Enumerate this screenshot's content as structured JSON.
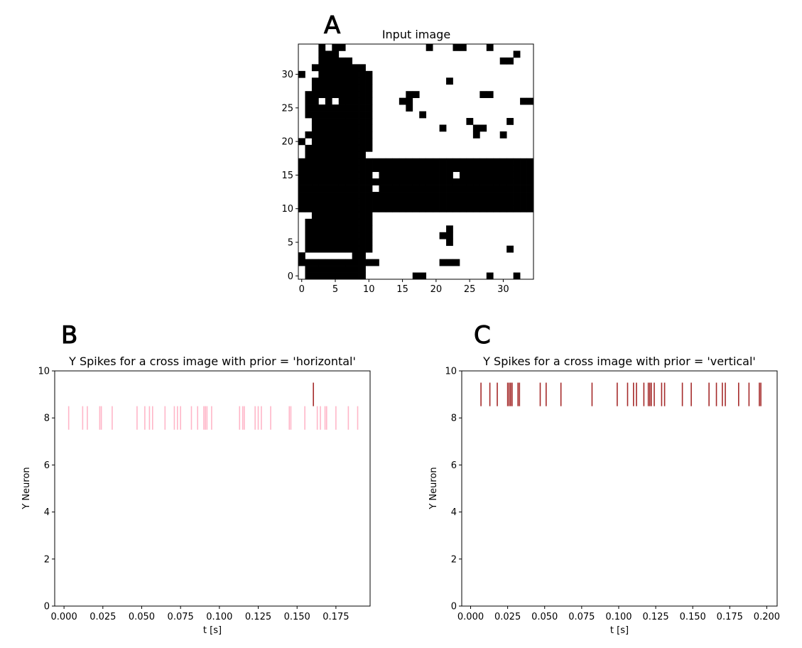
{
  "panels": {
    "A": "A",
    "B": "B",
    "C": "C"
  },
  "chart_data": [
    {
      "type": "heatmap",
      "title": "Input image",
      "xlabel": "",
      "ylabel": "",
      "xlim": [
        -0.5,
        34.5
      ],
      "ylim": [
        -0.5,
        34.5
      ],
      "xticks": [
        "0",
        "5",
        "10",
        "15",
        "20",
        "25",
        "30"
      ],
      "yticks": [
        "0",
        "5",
        "10",
        "15",
        "20",
        "25",
        "30"
      ],
      "colors": {
        "on": "#000000",
        "off": "#ffffff"
      },
      "size": [
        35,
        35
      ],
      "rows_top_to_bottom": [
        "00010110000000000001000110001000000",
        "00011100000000000000000000000000100",
        "00011111000000000000000000000011000",
        "00111111110000000000000000000000000",
        "10011111111000000000000000000000000",
        "00111111111000000000001000000000000",
        "00111111111000000000000000000000000",
        "01111111111000001100000000011000000",
        "01101011111000011000000000000000011",
        "01111111111000001000000000000000000",
        "01111111111000000010000000000000000",
        "00111111111000000000000001000001000",
        "00111111111000000000010000110000000",
        "01111111111000000000000000100010000",
        "10111111111000000000000000000000000",
        "01111111111000000000000000000000000",
        "01111111110000000000000000000000000",
        "11111111111111111111111111111111111",
        "11111111111111111111111111111111111",
        "11111111111011111111111011111111111",
        "11111111111111111111111111111111111",
        "11111111111011111111111111111111111",
        "11111111111111111111111111111111111",
        "11111111111111111111111111111111111",
        "11111111111111111111111111111111111",
        "00111111111000000000000000000000000",
        "01111111111000000000000000000000000",
        "01111111111000000000001000000000000",
        "01111111111000000000011000000000000",
        "01111111111000000000001000000000000",
        "01111111111000000000000000000001000",
        "10000000110000000000000000000000000",
        "11111111111100000000011100000000000",
        "01111111110000000000000000000000000",
        "01111111110000000110000000001000100"
      ]
    },
    {
      "type": "scatter",
      "title": "Y Spikes for a cross image with prior = 'horizontal'",
      "xlabel": "t [s]",
      "ylabel": "Y Neuron",
      "xlim": [
        -0.006,
        0.197
      ],
      "ylim": [
        0,
        10
      ],
      "xticks": [
        "0.000",
        "0.025",
        "0.050",
        "0.075",
        "0.100",
        "0.125",
        "0.150",
        "0.175"
      ],
      "yticks": [
        "0",
        "2",
        "4",
        "6",
        "8",
        "10"
      ],
      "series": [
        {
          "neuron": 8,
          "color": "#ffb6c8",
          "values": [
            0.003,
            0.012,
            0.015,
            0.023,
            0.024,
            0.031,
            0.047,
            0.052,
            0.055,
            0.057,
            0.065,
            0.071,
            0.073,
            0.075,
            0.082,
            0.086,
            0.09,
            0.091,
            0.092,
            0.095,
            0.113,
            0.115,
            0.116,
            0.123,
            0.125,
            0.127,
            0.133,
            0.145,
            0.146,
            0.155,
            0.163,
            0.165,
            0.168,
            0.169,
            0.175,
            0.183,
            0.189
          ]
        },
        {
          "neuron": 9,
          "color": "#a52a2a",
          "values": [
            0.1605
          ]
        }
      ]
    },
    {
      "type": "scatter",
      "title": "Y Spikes for a cross image with prior = 'vertical'",
      "xlabel": "t [s]",
      "ylabel": "Y Neuron",
      "xlim": [
        -0.006,
        0.207
      ],
      "ylim": [
        0,
        10
      ],
      "xticks": [
        "0.000",
        "0.025",
        "0.050",
        "0.075",
        "0.100",
        "0.125",
        "0.150",
        "0.175",
        "0.200"
      ],
      "yticks": [
        "0",
        "2",
        "4",
        "6",
        "8",
        "10"
      ],
      "series": [
        {
          "neuron": 9,
          "color": "#a52a2a",
          "values": [
            0.007,
            0.013,
            0.018,
            0.025,
            0.026,
            0.027,
            0.028,
            0.032,
            0.033,
            0.047,
            0.051,
            0.061,
            0.082,
            0.099,
            0.106,
            0.11,
            0.112,
            0.117,
            0.12,
            0.121,
            0.122,
            0.124,
            0.129,
            0.131,
            0.143,
            0.149,
            0.161,
            0.166,
            0.17,
            0.172,
            0.181,
            0.188,
            0.195,
            0.196
          ]
        }
      ]
    }
  ]
}
